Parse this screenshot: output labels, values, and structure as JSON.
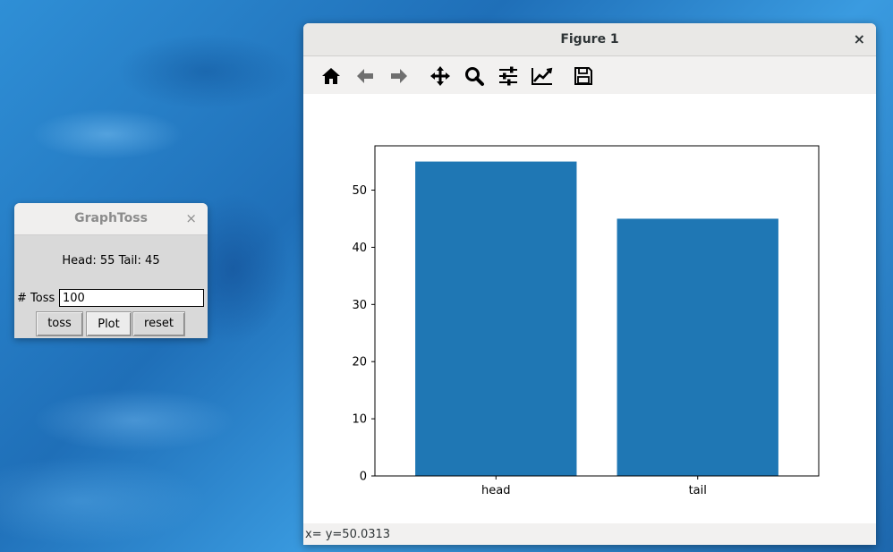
{
  "graphtoss": {
    "title": "GraphToss",
    "close_glyph": "×",
    "result_text": "Head: 55 Tail: 45",
    "toss_label": "# Toss",
    "toss_value": "100",
    "buttons": {
      "toss": "toss",
      "plot": "Plot",
      "reset": "reset"
    }
  },
  "figure": {
    "title": "Figure 1",
    "close_glyph": "×",
    "toolbar": [
      {
        "name": "home-icon"
      },
      {
        "name": "back-arrow-icon"
      },
      {
        "name": "forward-arrow-icon"
      },
      {
        "name": "pan-move-icon"
      },
      {
        "name": "zoom-magnifier-icon"
      },
      {
        "name": "subplots-sliders-icon"
      },
      {
        "name": "edit-axis-lines-icon"
      },
      {
        "name": "save-disk-icon"
      }
    ],
    "status_text": "x= y=50.0313"
  },
  "chart_data": {
    "type": "bar",
    "categories": [
      "head",
      "tail"
    ],
    "values": [
      55,
      45
    ],
    "ylim": [
      0,
      57.75
    ],
    "yticks": [
      0,
      10,
      20,
      30,
      40,
      50
    ],
    "bar_color": "#1f77b4",
    "grid": false
  }
}
